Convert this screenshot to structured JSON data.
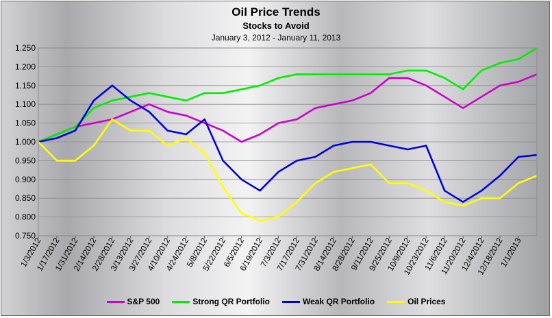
{
  "chart_data": {
    "type": "line",
    "title": "Oil Price Trends",
    "subtitle": "Stocks to Avoid",
    "date_range": "January 3, 2012 - January 11, 2013",
    "xlabel": "",
    "ylabel": "",
    "ylim": [
      0.75,
      1.25
    ],
    "yticks": [
      "0.750",
      "0.800",
      "0.850",
      "0.900",
      "0.950",
      "1.000",
      "1.050",
      "1.100",
      "1.150",
      "1.200",
      "1.250"
    ],
    "xticks": [
      "1/3/2012",
      "1/17/2012",
      "1/31/2012",
      "2/14/2012",
      "2/28/2012",
      "3/13/2012",
      "3/27/2012",
      "4/10/2012",
      "4/24/2012",
      "5/8/2012",
      "5/22/2012",
      "6/5/2012",
      "6/19/2012",
      "7/3/2012",
      "7/17/2012",
      "7/31/2012",
      "8/14/2012",
      "8/28/2012",
      "9/11/2012",
      "9/25/2012",
      "10/9/2012",
      "10/23/2012",
      "11/6/2012",
      "11/20/2012",
      "12/4/2012",
      "12/18/2012",
      "1/1/2013"
    ],
    "grid": true,
    "legend_position": "bottom",
    "x": [
      "1/3/2012",
      "1/17/2012",
      "1/31/2012",
      "2/14/2012",
      "2/28/2012",
      "3/13/2012",
      "3/27/2012",
      "4/10/2012",
      "4/24/2012",
      "5/8/2012",
      "5/22/2012",
      "6/5/2012",
      "6/19/2012",
      "7/3/2012",
      "7/17/2012",
      "7/31/2012",
      "8/14/2012",
      "8/28/2012",
      "9/11/2012",
      "9/25/2012",
      "10/9/2012",
      "10/23/2012",
      "11/6/2012",
      "11/20/2012",
      "12/4/2012",
      "12/18/2012",
      "1/1/2013",
      "1/11/2013"
    ],
    "series": [
      {
        "name": "S&P 500",
        "color": "#cc00cc",
        "values": [
          1.0,
          1.02,
          1.04,
          1.05,
          1.06,
          1.08,
          1.1,
          1.08,
          1.07,
          1.05,
          1.03,
          1.0,
          1.02,
          1.05,
          1.06,
          1.09,
          1.1,
          1.11,
          1.13,
          1.17,
          1.17,
          1.15,
          1.12,
          1.09,
          1.12,
          1.15,
          1.16,
          1.18
        ]
      },
      {
        "name": "Strong QR Portfolio",
        "color": "#00ee00",
        "values": [
          1.0,
          1.02,
          1.04,
          1.09,
          1.11,
          1.12,
          1.13,
          1.12,
          1.11,
          1.13,
          1.13,
          1.14,
          1.15,
          1.17,
          1.18,
          1.18,
          1.18,
          1.18,
          1.18,
          1.18,
          1.19,
          1.19,
          1.17,
          1.14,
          1.19,
          1.21,
          1.22,
          1.25
        ]
      },
      {
        "name": "Weak QR Portfolio",
        "color": "#0000dd",
        "values": [
          1.0,
          1.01,
          1.03,
          1.11,
          1.15,
          1.11,
          1.08,
          1.03,
          1.02,
          1.06,
          0.95,
          0.9,
          0.87,
          0.92,
          0.95,
          0.96,
          0.99,
          1.0,
          1.0,
          0.99,
          0.98,
          0.99,
          0.87,
          0.84,
          0.87,
          0.91,
          0.96,
          0.965
        ]
      },
      {
        "name": "Oil Prices",
        "color": "#ffff00",
        "values": [
          1.0,
          0.95,
          0.95,
          0.99,
          1.06,
          1.03,
          1.03,
          0.99,
          1.01,
          0.97,
          0.88,
          0.81,
          0.79,
          0.8,
          0.84,
          0.89,
          0.92,
          0.93,
          0.94,
          0.89,
          0.89,
          0.87,
          0.84,
          0.83,
          0.85,
          0.85,
          0.89,
          0.91
        ]
      }
    ]
  }
}
